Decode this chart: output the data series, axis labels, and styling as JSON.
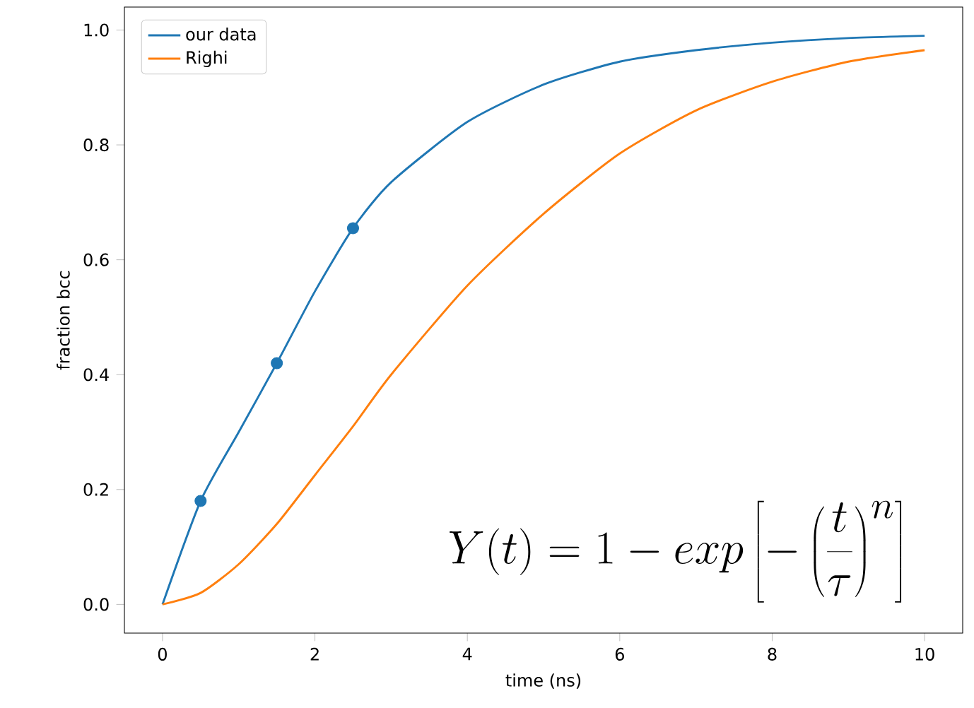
{
  "chart_data": {
    "type": "line",
    "xlabel": "time (ns)",
    "ylabel": "fraction bcc",
    "xlim": [
      -0.5,
      10.5
    ],
    "ylim": [
      -0.05,
      1.04
    ],
    "xticks": [
      0,
      2,
      4,
      6,
      8,
      10
    ],
    "yticks": [
      {
        "value": 0,
        "label": "0.0"
      },
      {
        "value": 0.2,
        "label": "0.2"
      },
      {
        "value": 0.4,
        "label": "0.4"
      },
      {
        "value": 0.6,
        "label": "0.6"
      },
      {
        "value": 0.8,
        "label": "0.8"
      },
      {
        "value": 1,
        "label": "1.0"
      }
    ],
    "legend": "top left",
    "grid": false,
    "series": [
      {
        "name": "our data",
        "color": "#1f77b4",
        "x": [
          0,
          0.5,
          1,
          1.5,
          2,
          2.5,
          3,
          4,
          5,
          6,
          7,
          8,
          9,
          10
        ],
        "values": [
          0,
          0.18,
          0.3,
          0.42,
          0.545,
          0.655,
          0.735,
          0.84,
          0.905,
          0.945,
          0.965,
          0.978,
          0.986,
          0.99
        ]
      },
      {
        "name": "Righi",
        "color": "#ff7f0e",
        "x": [
          0,
          0.5,
          1,
          1.5,
          2,
          2.5,
          3,
          4,
          5,
          6,
          7,
          8,
          9,
          10
        ],
        "values": [
          0,
          0.02,
          0.07,
          0.14,
          0.225,
          0.31,
          0.4,
          0.555,
          0.68,
          0.785,
          0.86,
          0.91,
          0.945,
          0.965
        ]
      },
      {
        "type": "scatter",
        "marker": "circle",
        "color": "#1f77b4",
        "x": [
          0.5,
          1.5,
          2.5
        ],
        "values": [
          0.18,
          0.42,
          0.655
        ]
      }
    ],
    "annotations": [
      "Y(t) = 1 - exp\\left[-\\left(\\frac{t}{\\tau}\\right)^{n}\\right]"
    ]
  }
}
